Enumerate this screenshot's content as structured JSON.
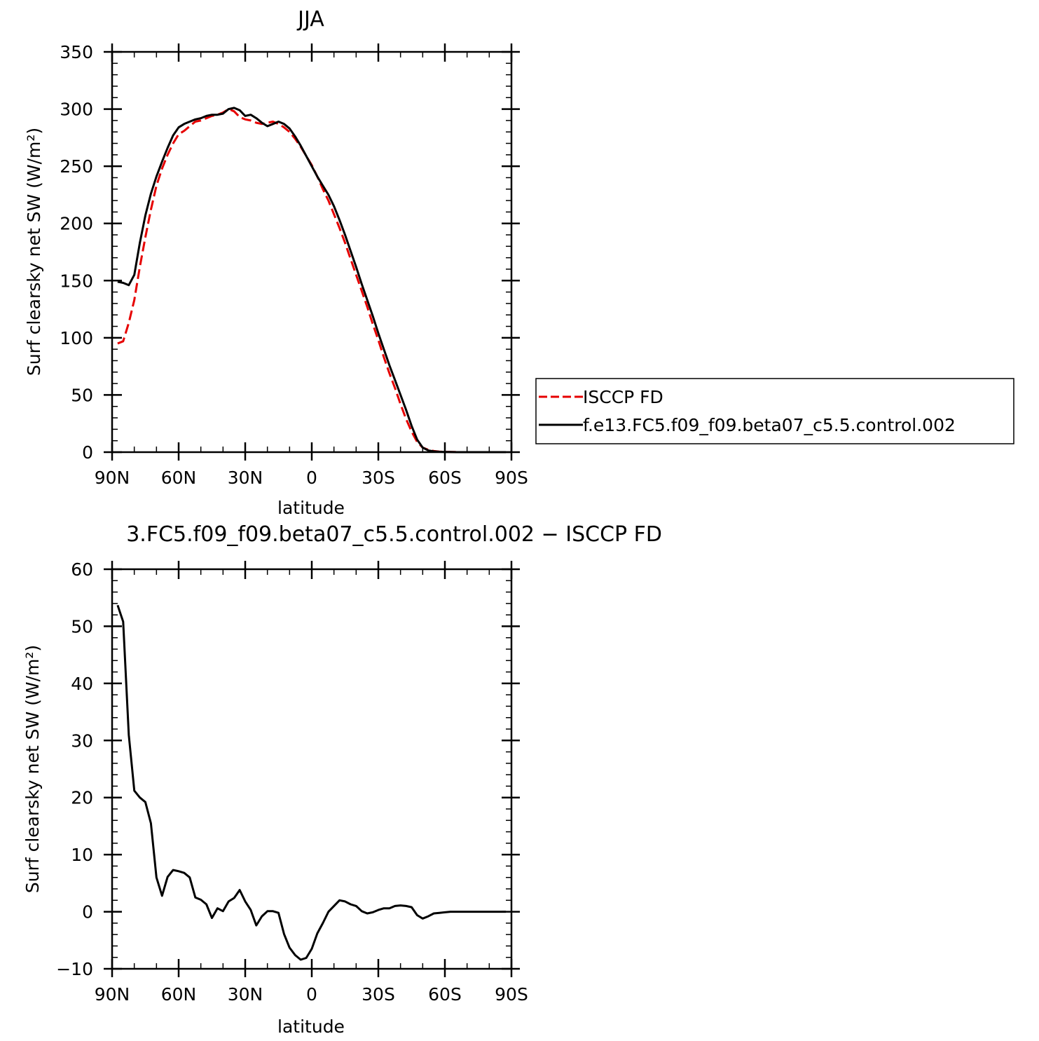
{
  "chart_data": [
    {
      "type": "line",
      "title": "JJA",
      "xlabel": "latitude",
      "ylabel": "Surf clearsky net SW (W/m²)",
      "xlim": [
        90,
        -90
      ],
      "ylim": [
        0,
        350
      ],
      "x_ticks": [
        {
          "value": 90,
          "label": "90N"
        },
        {
          "value": 60,
          "label": "60N"
        },
        {
          "value": 30,
          "label": "30N"
        },
        {
          "value": 0,
          "label": "0"
        },
        {
          "value": -30,
          "label": "30S"
        },
        {
          "value": -60,
          "label": "60S"
        },
        {
          "value": -90,
          "label": "90S"
        }
      ],
      "y_ticks": [
        {
          "value": 0,
          "label": "0"
        },
        {
          "value": 50,
          "label": "50"
        },
        {
          "value": 100,
          "label": "100"
        },
        {
          "value": 150,
          "label": "150"
        },
        {
          "value": 200,
          "label": "200"
        },
        {
          "value": 250,
          "label": "250"
        },
        {
          "value": 300,
          "label": "300"
        },
        {
          "value": 350,
          "label": "350"
        }
      ],
      "legend": {
        "placement": "right"
      },
      "series": [
        {
          "name": "ISCCP FD",
          "color": "#e60000",
          "dash": "dashed",
          "x": [
            87.5,
            85,
            82.5,
            80,
            77.5,
            75,
            72.5,
            70,
            67.5,
            65,
            62.5,
            60,
            57.5,
            55,
            52.5,
            50,
            47.5,
            45,
            42.5,
            40,
            37.5,
            35,
            32.5,
            30,
            27.5,
            25,
            22.5,
            20,
            17.5,
            15,
            12.5,
            10,
            7.5,
            5,
            2.5,
            0,
            -2.5,
            -5,
            -7.5,
            -10,
            -12.5,
            -15,
            -17.5,
            -20,
            -22.5,
            -25,
            -27.5,
            -30,
            -32.5,
            -35,
            -37.5,
            -40,
            -42.5,
            -45,
            -47.5,
            -50,
            -52.5,
            -55,
            -57.5,
            -60,
            -62.5,
            -65,
            -67.5,
            -70,
            -72.5,
            -75,
            -77.5,
            -80,
            -82.5,
            -85,
            -87.5
          ],
          "y": [
            95,
            97,
            113,
            133,
            162,
            188,
            212,
            233,
            248,
            260,
            270,
            278,
            281,
            285,
            289,
            290,
            292,
            294,
            295,
            297,
            300,
            298,
            293,
            291,
            290,
            288,
            287,
            288,
            289,
            287,
            284,
            280,
            274,
            267,
            259,
            251,
            241,
            230,
            220,
            208,
            196,
            183,
            169,
            155,
            141,
            127,
            112,
            98,
            83,
            69,
            56,
            42,
            29,
            18,
            9,
            4,
            2,
            1,
            0.5,
            0.3,
            0.2,
            0.1,
            0,
            0,
            0,
            0,
            0,
            0,
            0,
            0,
            0
          ]
        },
        {
          "name": "f.e13.FC5.f09_f09.beta07_c5.5.control.002",
          "color": "#000000",
          "dash": "solid",
          "x": [
            87.5,
            85,
            82.5,
            80,
            77.5,
            75,
            72.5,
            70,
            67.5,
            65,
            62.5,
            60,
            57.5,
            55,
            52.5,
            50,
            47.5,
            45,
            42.5,
            40,
            37.5,
            35,
            32.5,
            30,
            27.5,
            25,
            22.5,
            20,
            17.5,
            15,
            12.5,
            10,
            7.5,
            5,
            2.5,
            0,
            -2.5,
            -5,
            -7.5,
            -10,
            -12.5,
            -15,
            -17.5,
            -20,
            -22.5,
            -25,
            -27.5,
            -30,
            -32.5,
            -35,
            -37.5,
            -40,
            -42.5,
            -45,
            -47.5,
            -50,
            -52.5,
            -55,
            -57.5,
            -60,
            -62.5,
            -65,
            -67.5,
            -70,
            -72.5,
            -75,
            -77.5,
            -80,
            -82.5,
            -85,
            -87.5
          ],
          "y": [
            149,
            148,
            146,
            155,
            183,
            207,
            226,
            241,
            254,
            266,
            277,
            284,
            287,
            289,
            291,
            292,
            294,
            295,
            295,
            296,
            300,
            301,
            299,
            294,
            295,
            292,
            288,
            285,
            287,
            289,
            287,
            283,
            276,
            268,
            259,
            250,
            241,
            233,
            225,
            215,
            203,
            190,
            176,
            162,
            147,
            133,
            119,
            104,
            90,
            76,
            63,
            50,
            37,
            23,
            11,
            4,
            1.5,
            0.7,
            0.3,
            0.2,
            0.1,
            0,
            0,
            0,
            0,
            0,
            0,
            0,
            0,
            0,
            0
          ]
        }
      ]
    },
    {
      "type": "line",
      "title": "3.FC5.f09_f09.beta07_c5.5.control.002 − ISCCP FD",
      "xlabel": "latitude",
      "ylabel": "Surf clearsky net SW (W/m²)",
      "xlim": [
        90,
        -90
      ],
      "ylim": [
        -10,
        60
      ],
      "x_ticks": [
        {
          "value": 90,
          "label": "90N"
        },
        {
          "value": 60,
          "label": "60N"
        },
        {
          "value": 30,
          "label": "30N"
        },
        {
          "value": 0,
          "label": "0"
        },
        {
          "value": -30,
          "label": "30S"
        },
        {
          "value": -60,
          "label": "60S"
        },
        {
          "value": -90,
          "label": "90S"
        }
      ],
      "y_ticks": [
        {
          "value": -10,
          "label": "−10"
        },
        {
          "value": 0,
          "label": "0"
        },
        {
          "value": 10,
          "label": "10"
        },
        {
          "value": 20,
          "label": "20"
        },
        {
          "value": 30,
          "label": "30"
        },
        {
          "value": 40,
          "label": "40"
        },
        {
          "value": 50,
          "label": "50"
        },
        {
          "value": 60,
          "label": "60"
        }
      ],
      "series": [
        {
          "color": "#000000",
          "dash": "solid",
          "x": [
            87.5,
            85,
            82.5,
            80,
            77.5,
            75,
            72.5,
            70,
            67.5,
            65,
            62.5,
            60,
            57.5,
            55,
            52.5,
            50,
            47.5,
            45,
            42.5,
            40,
            37.5,
            35,
            32.5,
            30,
            27.5,
            25,
            22.5,
            20,
            17.5,
            15,
            12.5,
            10,
            7.5,
            5,
            2.5,
            0,
            -2.5,
            -5,
            -7.5,
            -10,
            -12.5,
            -15,
            -17.5,
            -20,
            -22.5,
            -25,
            -27.5,
            -30,
            -32.5,
            -35,
            -37.5,
            -40,
            -42.5,
            -45,
            -47.5,
            -50,
            -52.5,
            -55,
            -57.5,
            -60,
            -62.5,
            -65,
            -67.5,
            -70,
            -72.5,
            -75,
            -77.5,
            -80,
            -82.5,
            -85,
            -87.5
          ],
          "y": [
            53.7,
            50.8,
            31,
            21.2,
            20,
            19.2,
            15.5,
            6,
            2.8,
            6.1,
            7.3,
            7.1,
            6.8,
            6,
            2.5,
            2.1,
            1.3,
            -1.1,
            0.6,
            0.1,
            1.8,
            2.4,
            3.8,
            1.8,
            0.3,
            -2.4,
            -0.8,
            0.1,
            0.1,
            -0.2,
            -3.9,
            -6.3,
            -7.6,
            -8.4,
            -8.1,
            -6.5,
            -3.8,
            -2,
            0,
            1,
            2,
            1.8,
            1.3,
            1,
            0.1,
            -0.3,
            -0.1,
            0.3,
            0.6,
            0.6,
            1,
            1.1,
            1,
            0.8,
            -0.6,
            -1.2,
            -0.8,
            -0.3,
            -0.2,
            -0.1,
            0,
            0,
            0,
            0,
            0,
            0,
            0,
            0,
            0,
            0,
            0
          ]
        }
      ]
    }
  ]
}
